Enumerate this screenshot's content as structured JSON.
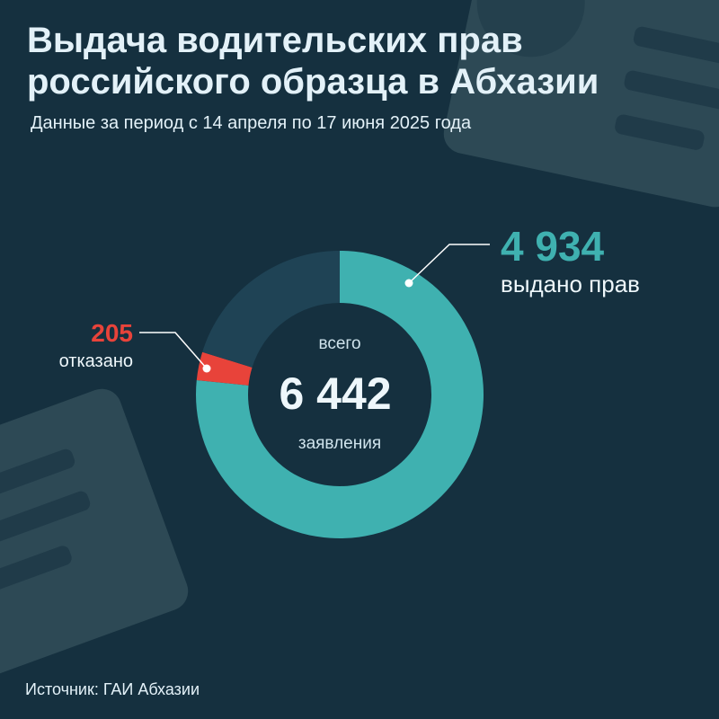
{
  "title": "Выдача водительских прав российского образца в Абхазии",
  "subtitle": "Данные за период с 14 апреля по 17 июня 2025 года",
  "source": "Источник: ГАИ Абхазии",
  "center": {
    "top_label": "всего",
    "total": "6 442",
    "bottom_label": "заявления"
  },
  "issued": {
    "value": "4 934",
    "label": "выдано прав"
  },
  "refused": {
    "value": "205",
    "label": "отказано"
  },
  "colors": {
    "background": "#15303f",
    "issued": "#3fb1b0",
    "refused": "#e8433a",
    "remainder": "#1f4355",
    "decor": "#2f4a57"
  },
  "chart_data": {
    "type": "pie",
    "variant": "donut",
    "start": "top",
    "direction": "clockwise",
    "total": 6442,
    "slices": [
      {
        "label": "выдано прав",
        "value": 4934,
        "color": "#3fb1b0"
      },
      {
        "label": "отказано",
        "value": 205,
        "color": "#e8433a"
      },
      {
        "label": "",
        "value": 1303,
        "color": "#1f4355"
      }
    ]
  }
}
